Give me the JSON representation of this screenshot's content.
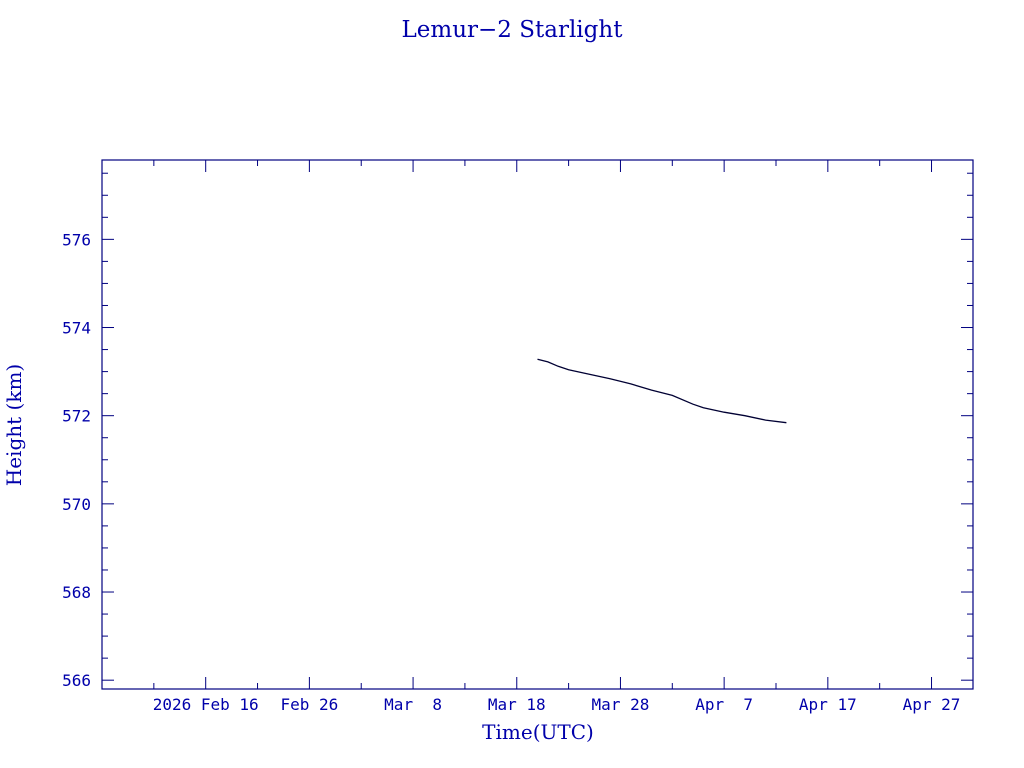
{
  "colors": {
    "frame": "#000080",
    "text": "#0000aa",
    "line": "#000033",
    "background": "#ffffff"
  },
  "chart_data": {
    "type": "line",
    "title": "Lemur−2 Starlight",
    "xlabel": "Time(UTC)",
    "ylabel": "Height (km)",
    "x_is_date": true,
    "xlim": [
      "2026-02-06",
      "2026-05-01"
    ],
    "ylim": [
      565.8,
      577.8
    ],
    "grid": false,
    "x_ticks": [
      {
        "date": "2026-02-16",
        "label": "2026 Feb 16"
      },
      {
        "date": "2026-02-26",
        "label": "Feb 26"
      },
      {
        "date": "2026-03-08",
        "label": "Mar  8"
      },
      {
        "date": "2026-03-18",
        "label": "Mar 18"
      },
      {
        "date": "2026-03-28",
        "label": "Mar 28"
      },
      {
        "date": "2026-04-07",
        "label": "Apr  7"
      },
      {
        "date": "2026-04-17",
        "label": "Apr 17"
      },
      {
        "date": "2026-04-27",
        "label": "Apr 27"
      }
    ],
    "y_ticks": [
      566,
      568,
      570,
      572,
      574,
      576
    ],
    "series": [
      {
        "x": [
          "2026-03-20",
          "2026-03-21",
          "2026-03-22",
          "2026-03-23",
          "2026-03-25",
          "2026-03-27",
          "2026-03-29",
          "2026-03-31",
          "2026-04-02",
          "2026-04-04",
          "2026-04-05",
          "2026-04-07",
          "2026-04-09",
          "2026-04-11",
          "2026-04-13"
        ],
        "y": [
          573.28,
          573.22,
          573.12,
          573.04,
          572.94,
          572.84,
          572.72,
          572.58,
          572.46,
          572.26,
          572.18,
          572.08,
          572.0,
          571.9,
          571.84
        ]
      }
    ]
  }
}
